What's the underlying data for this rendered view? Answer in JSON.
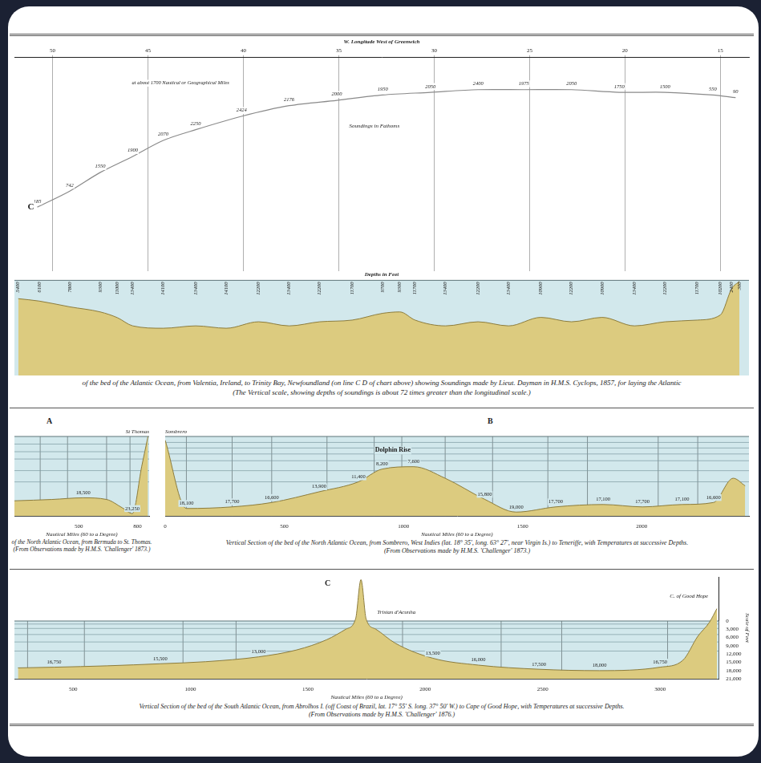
{
  "chart_data": [
    {
      "type": "line",
      "title": "W. Longitude West of Greenwich",
      "annotations": [
        "C",
        "at about 1700 Nautical or Geographical Miles",
        "Soundings in Fathoms"
      ],
      "x": [
        50.8,
        49.1,
        47.5,
        45.8,
        44.2,
        42.5,
        40.1,
        37.6,
        35.1,
        32.7,
        30.2,
        27.7,
        25.3,
        22.8,
        20.3,
        17.9,
        15.4,
        14.2
      ],
      "values": [
        48.4,
        49.0,
        49.7,
        50.3,
        50.9,
        51.3,
        51.8,
        52.2,
        52.4,
        52.6,
        52.7,
        52.8,
        52.8,
        52.8,
        52.7,
        52.7,
        52.6,
        52.5
      ],
      "soundings": [
        185,
        742,
        1550,
        1900,
        2070,
        2250,
        2424,
        2176,
        2000,
        1950,
        2050,
        2400,
        1975,
        2050,
        1750,
        1500,
        550,
        90
      ],
      "xlim": [
        52,
        13.5
      ],
      "xticks": [
        50,
        45,
        40,
        35,
        30,
        25,
        20,
        15
      ],
      "ylim": [
        46,
        54
      ],
      "grid": true,
      "tick_labels": "x",
      "color": "#8a8a8a"
    },
    {
      "type": "area",
      "title": "Depths in Feet",
      "caption": [
        "of the bed of the Atlantic Ocean, from Valentia, Ireland, to Trinity Bay, Newfoundland (on line C D of chart above) showing Soundings made by Lieut. Dayman in H.M.S. Cyclops, 1857, for laying the Atlantic",
        "(The Vertical scale, showing depths of soundings is about 72 times greater than the longitudinal scale.)"
      ],
      "x": [
        51.8,
        50.7,
        49.1,
        47.5,
        46.6,
        45.8,
        44.2,
        42.5,
        40.9,
        39.2,
        37.6,
        36.0,
        34.3,
        32.7,
        31.8,
        31.0,
        29.4,
        27.7,
        26.1,
        24.4,
        22.8,
        21.2,
        19.5,
        17.9,
        16.2,
        15.0,
        14.4,
        14.0
      ],
      "values": [
        5400,
        6100,
        7800,
        9300,
        11000,
        13400,
        14100,
        13400,
        14100,
        12200,
        13400,
        12200,
        11700,
        9700,
        9300,
        11700,
        13400,
        12200,
        13400,
        10900,
        12200,
        10900,
        13400,
        12200,
        11700,
        10200,
        2400,
        300
      ],
      "xlim": [
        52,
        13.5
      ],
      "ylim": [
        28000,
        0
      ],
      "data_labels": true,
      "tick_labels": false,
      "color": "#dccb7f"
    },
    {
      "type": "area",
      "panel": "A",
      "annotations": [
        "St Thomas"
      ],
      "caption": [
        "of the North Atlantic Ocean, from Bermuda to St. Thomas.",
        "(From Observations made by H.M.S. 'Challenger' 1873.)"
      ],
      "xlabel": "Nautical Miles (60 to a Degree)",
      "x": [
        170,
        362,
        522,
        642,
        722,
        774,
        822,
        854
      ],
      "values": [
        19400,
        19000,
        18500,
        19000,
        21500,
        23250,
        9000,
        0
      ],
      "value_labels": [
        null,
        null,
        "18,500",
        null,
        null,
        "23,250",
        null,
        null
      ],
      "isotherm_depths": [
        2300,
        4600,
        6800,
        10300,
        13700
      ],
      "stations": [
        302,
        442,
        642,
        762
      ],
      "xlim": [
        170,
        860
      ],
      "xticks": [
        500,
        800
      ],
      "ylim": [
        24000,
        0
      ],
      "tick_labels": "x",
      "color": "#dccb7f"
    },
    {
      "type": "area",
      "panel": "B",
      "annotations": [
        "Sombrero",
        "Dolphin Rise"
      ],
      "caption": [
        "Vertical Section of the bed of the North Atlantic Ocean, from Sombrero, West Indies (lat. 18° 35', long. 63° 27', near Virgin Is.) to Teneriffe, with Temperatures at successive Depths.",
        "(From Observations made by H.M.S. 'Challenger' 1873.)"
      ],
      "xlabel": "Nautical Miles (60 to a Degree)",
      "x": [
        0,
        89,
        281,
        447,
        646,
        811,
        910,
        1043,
        1175,
        1341,
        1473,
        1639,
        1838,
        2003,
        2169,
        2301,
        2384,
        2434
      ],
      "values": [
        950,
        18100,
        17700,
        16600,
        13900,
        11400,
        8200,
        7600,
        10500,
        15800,
        19000,
        17700,
        17100,
        17700,
        17100,
        16600,
        10500,
        12400
      ],
      "value_labels": [
        null,
        "18,100",
        "17,700",
        "16,600",
        "13,900",
        "11,400",
        "8,200",
        "7,600",
        null,
        "15,800",
        "19,000",
        "17,700",
        "17,100",
        "17,700",
        "17,100",
        "16,600",
        null,
        null
      ],
      "isotherm_depths": [
        1500,
        2900,
        4400,
        6100,
        8600,
        11400
      ],
      "stations": [
        89,
        281,
        447,
        679,
        877,
        993,
        1175,
        1374,
        1606,
        1772,
        2069,
        2235
      ],
      "xlim": [
        0,
        2450
      ],
      "xticks": [
        0,
        500,
        1000,
        1500,
        2000
      ],
      "ylim": [
        20000,
        0
      ],
      "tick_labels": "x",
      "color": "#dccb7f"
    },
    {
      "type": "area",
      "panel": "C",
      "annotations": [
        "Tristan d'Acunha",
        "C. of Good Hope"
      ],
      "caption": [
        "Vertical Section of the bed of the South Atlantic Ocean, from Abrolhos I. (off Coast of Brazil, lat. 17° 55' S. long. 37° 50' W.) to Cape of Good Hope, with Temperatures at successive Depths.",
        "(From Observations made by H.M.S. 'Challenger' 1876.)"
      ],
      "xlabel": "Nautical Miles (60 to a Degree)",
      "ylabel": "Scale of Feet",
      "x": [
        265,
        419,
        645,
        871,
        1065,
        1290,
        1452,
        1581,
        1661,
        1703,
        1726,
        1748,
        1790,
        1871,
        2032,
        2226,
        2484,
        2742,
        3000,
        3097,
        3161,
        3210,
        3242
      ],
      "values": [
        17000,
        16750,
        16250,
        15500,
        14750,
        13000,
        10500,
        6750,
        3000,
        -750,
        -15000,
        -750,
        3000,
        8000,
        13500,
        16000,
        17500,
        18000,
        16750,
        14250,
        5500,
        500,
        -4500
      ],
      "value_labels": [
        null,
        "16,750",
        null,
        "15,500",
        null,
        "13,000",
        null,
        null,
        null,
        null,
        null,
        null,
        null,
        null,
        "13,500",
        "16,000",
        "17,500",
        "18,000",
        "16,750",
        null,
        null,
        null,
        null
      ],
      "isotherm_depths": [
        1100,
        2700,
        4900,
        7600,
        10900
      ],
      "stations": [
        306,
        548,
        968,
        1194,
        1903,
        2323,
        2581,
        3032
      ],
      "xlim": [
        250,
        3250
      ],
      "xticks": [
        500,
        1000,
        1500,
        2000,
        2500,
        3000
      ],
      "ylim": [
        21000,
        -16000
      ],
      "yticks": [
        0,
        {
          "value": 3000,
          "label": "3,000"
        },
        {
          "value": 6000,
          "label": "6,000"
        },
        {
          "value": 9000,
          "label": "9,000"
        },
        {
          "value": 12000,
          "label": "12,000"
        },
        {
          "value": 15000,
          "label": "15,000"
        },
        {
          "value": 18000,
          "label": "18,000"
        },
        {
          "value": 21000,
          "label": "21,000"
        }
      ],
      "color": "#dccb7f"
    }
  ]
}
